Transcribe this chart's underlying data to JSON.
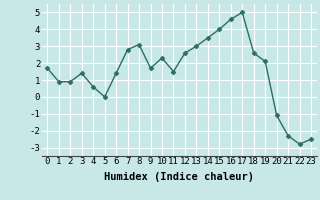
{
  "x": [
    0,
    1,
    2,
    3,
    4,
    5,
    6,
    7,
    8,
    9,
    10,
    11,
    12,
    13,
    14,
    15,
    16,
    17,
    18,
    19,
    20,
    21,
    22,
    23
  ],
  "y": [
    1.7,
    0.9,
    0.9,
    1.4,
    0.6,
    0.0,
    1.4,
    2.8,
    3.1,
    1.7,
    2.3,
    1.5,
    2.6,
    3.0,
    3.5,
    4.0,
    4.6,
    5.0,
    2.6,
    2.1,
    -1.1,
    -2.3,
    -2.8,
    -2.5
  ],
  "xlabel": "Humidex (Indice chaleur)",
  "ylabel": "",
  "line_color": "#2d6e63",
  "marker": "D",
  "marker_size": 2.5,
  "bg_color": "#c8e8e8",
  "grid_color": "#ffffff",
  "ylim": [
    -3.5,
    5.5
  ],
  "yticks": [
    -3,
    -2,
    -1,
    0,
    1,
    2,
    3,
    4,
    5
  ],
  "xticks": [
    0,
    1,
    2,
    3,
    4,
    5,
    6,
    7,
    8,
    9,
    10,
    11,
    12,
    13,
    14,
    15,
    16,
    17,
    18,
    19,
    20,
    21,
    22,
    23
  ],
  "tick_label_fontsize": 6.5,
  "xlabel_fontsize": 7.5
}
